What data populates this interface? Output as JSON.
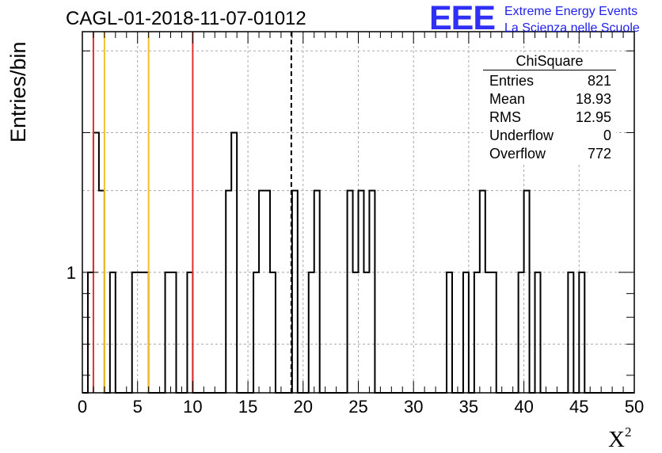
{
  "title": "CAGL-01-2018-11-07-01012",
  "logo": {
    "mark": "EEE",
    "line1": "Extreme Energy Events",
    "line2": "La Scienza nelle Scuole",
    "color": "#2f2ff5"
  },
  "stats": {
    "title": "ChiSquare",
    "rows": [
      {
        "label": "Entries",
        "value": "821"
      },
      {
        "label": "Mean",
        "value": "18.93"
      },
      {
        "label": "RMS",
        "value": "12.95"
      },
      {
        "label": "Underflow",
        "value": "0"
      },
      {
        "label": "Overflow",
        "value": "772"
      }
    ]
  },
  "chart_data": {
    "type": "bar",
    "histogram": true,
    "xlabel": "X",
    "xlabel_superscript": "2",
    "ylabel": "Entries/bin",
    "xlim": [
      0,
      50
    ],
    "ylim": [
      0.55,
      3.3
    ],
    "ylog": true,
    "grid": true,
    "bin_width": 0.5,
    "xticks": [
      "0",
      "5",
      "10",
      "15",
      "20",
      "25",
      "30",
      "35",
      "40",
      "45",
      "50"
    ],
    "yticks": [
      "1"
    ],
    "bins": [
      {
        "x": 0.5,
        "value": 1
      },
      {
        "x": 1.0,
        "value": 2
      },
      {
        "x": 1.5,
        "value": 1.5
      },
      {
        "x": 2.5,
        "value": 1
      },
      {
        "x": 4.5,
        "value": 1
      },
      {
        "x": 5.0,
        "value": 1
      },
      {
        "x": 5.5,
        "value": 1
      },
      {
        "x": 7.5,
        "value": 1
      },
      {
        "x": 8.0,
        "value": 1
      },
      {
        "x": 9.5,
        "value": 1
      },
      {
        "x": 13.0,
        "value": 1.5
      },
      {
        "x": 13.5,
        "value": 2
      },
      {
        "x": 15.5,
        "value": 1
      },
      {
        "x": 16.0,
        "value": 1.5
      },
      {
        "x": 16.5,
        "value": 1.5
      },
      {
        "x": 17.0,
        "value": 1
      },
      {
        "x": 19.0,
        "value": 1.5
      },
      {
        "x": 20.5,
        "value": 1
      },
      {
        "x": 21.0,
        "value": 1.5
      },
      {
        "x": 24.0,
        "value": 1.5
      },
      {
        "x": 24.5,
        "value": 1
      },
      {
        "x": 25.0,
        "value": 1.5
      },
      {
        "x": 25.5,
        "value": 1
      },
      {
        "x": 26.0,
        "value": 1.5
      },
      {
        "x": 33.0,
        "value": 1
      },
      {
        "x": 34.5,
        "value": 1
      },
      {
        "x": 35.5,
        "value": 1
      },
      {
        "x": 36.0,
        "value": 1.5
      },
      {
        "x": 36.5,
        "value": 1
      },
      {
        "x": 37.0,
        "value": 1
      },
      {
        "x": 39.5,
        "value": 1
      },
      {
        "x": 40.0,
        "value": 1.5
      },
      {
        "x": 41.0,
        "value": 1
      },
      {
        "x": 44.0,
        "value": 1
      },
      {
        "x": 45.0,
        "value": 1
      }
    ],
    "reference_lines": [
      {
        "x": 1.0,
        "color": "#e03030",
        "style": "solid"
      },
      {
        "x": 2.0,
        "color": "#f2c02e",
        "style": "solid"
      },
      {
        "x": 6.0,
        "color": "#f2c02e",
        "style": "solid"
      },
      {
        "x": 10.0,
        "color": "#e03030",
        "style": "solid"
      },
      {
        "x": 18.93,
        "color": "#000000",
        "style": "dashed"
      }
    ]
  }
}
